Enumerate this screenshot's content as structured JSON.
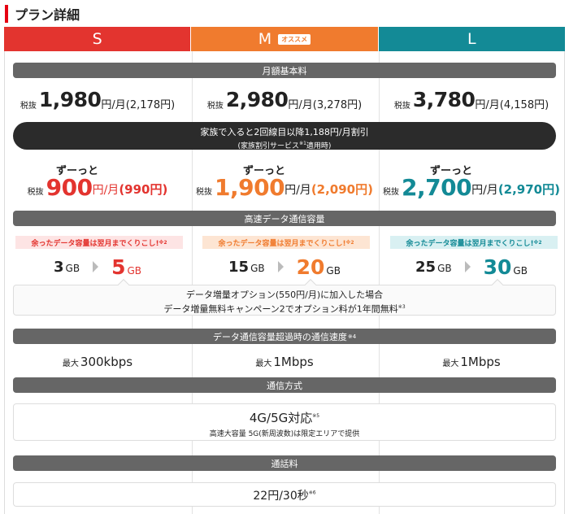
{
  "page": {
    "title": "プラン詳細"
  },
  "plans": [
    {
      "name": "S"
    },
    {
      "name": "M",
      "tag": "オススメ"
    },
    {
      "name": "L"
    }
  ],
  "monthly_fee": {
    "section_label": "月額基本料",
    "tax_excl_label": "税抜",
    "unit": "円/月",
    "prices": [
      {
        "excl": "1,980",
        "incl": "(2,178円)"
      },
      {
        "excl": "2,980",
        "incl": "(3,278円)"
      },
      {
        "excl": "3,780",
        "incl": "(4,158円)"
      }
    ]
  },
  "family_discount": {
    "line1": "家族で入ると2回線目以降1,188円/月割引",
    "line2_pre": "(家族割引サービス",
    "line2_note": "※1",
    "line2_post": "適用時)"
  },
  "discounted": {
    "label": "ずーっと",
    "tax_excl_label": "税抜",
    "unit": "円/月",
    "prices": [
      {
        "excl": "900",
        "incl": "(990円)"
      },
      {
        "excl": "1,900",
        "incl": "(2,090円)"
      },
      {
        "excl": "2,700",
        "incl": "(2,970円)"
      }
    ]
  },
  "data_capacity": {
    "section_label": "高速データ通信容量",
    "rollover_text": "余ったデータ容量は翌月までくりこし!",
    "rollover_note": "※2",
    "unit": "GB",
    "plans": [
      {
        "from": "3",
        "to": "5"
      },
      {
        "from": "15",
        "to": "20"
      },
      {
        "from": "25",
        "to": "30"
      }
    ],
    "option_line1": "データ増量オプション(550円/月)に加入した場合",
    "option_line2": "データ増量無料キャンペーン2でオプション料が1年間無料",
    "option_note": "※3"
  },
  "speed_limit": {
    "section_label": "データ通信容量超過時の通信速度",
    "section_note": "※4",
    "max_label": "最大",
    "values": [
      "300kbps",
      "1Mbps",
      "1Mbps"
    ]
  },
  "network": {
    "section_label": "通信方式",
    "main": "4G/5G対応",
    "main_note": "※5",
    "sub": "高速大容量 5G(新周波数)は限定エリアで提供"
  },
  "call_fee": {
    "section_label": "通話料",
    "value": "22円/30秒",
    "note": "※6"
  },
  "colors": {
    "s": "#e3342f",
    "m": "#f07b2e",
    "l": "#138a96",
    "accent": "#e60012"
  }
}
